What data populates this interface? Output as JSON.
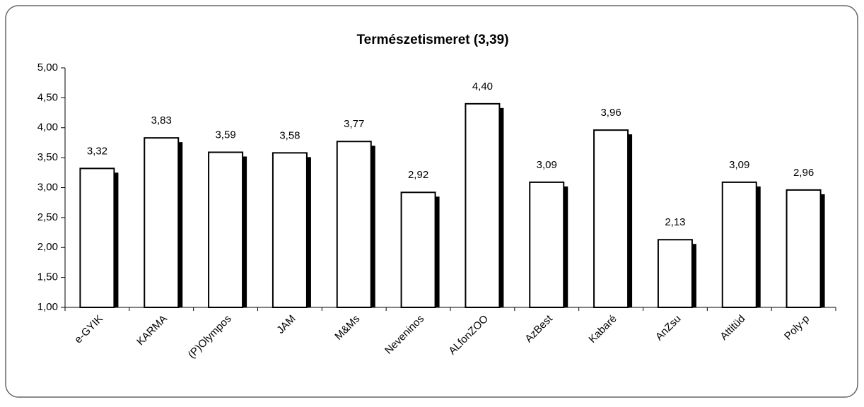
{
  "chart_data": {
    "type": "bar",
    "title": "Természetismeret (3,39)",
    "categories": [
      "e-GYIK",
      "KARMA",
      "(P)Olympos",
      "JAM",
      "M&Ms",
      "Neveninos",
      "ALfonZOO",
      "AzBest",
      "Kabaré",
      "AnZsu",
      "Attitüd",
      "Poly-p"
    ],
    "values": [
      3.32,
      3.83,
      3.59,
      3.58,
      3.77,
      2.92,
      4.4,
      3.09,
      3.96,
      2.13,
      3.09,
      2.96
    ],
    "value_labels": [
      "3,32",
      "3,83",
      "3,59",
      "3,58",
      "3,77",
      "2,92",
      "4,40",
      "3,09",
      "3,96",
      "2,13",
      "3,09",
      "2,96"
    ],
    "color": "#ffffff",
    "ylim": [
      1,
      5
    ],
    "yticks": [
      {
        "value": 1,
        "label": "1,00"
      },
      {
        "value": 1.5,
        "label": "1,50"
      },
      {
        "value": 2,
        "label": "2,00"
      },
      {
        "value": 2.5,
        "label": "2,50"
      },
      {
        "value": 3,
        "label": "3,00"
      },
      {
        "value": 3.5,
        "label": "3,50"
      },
      {
        "value": 4,
        "label": "4,00"
      },
      {
        "value": 4.5,
        "label": "4,50"
      },
      {
        "value": 5,
        "label": "5,00"
      }
    ],
    "grid": false
  }
}
